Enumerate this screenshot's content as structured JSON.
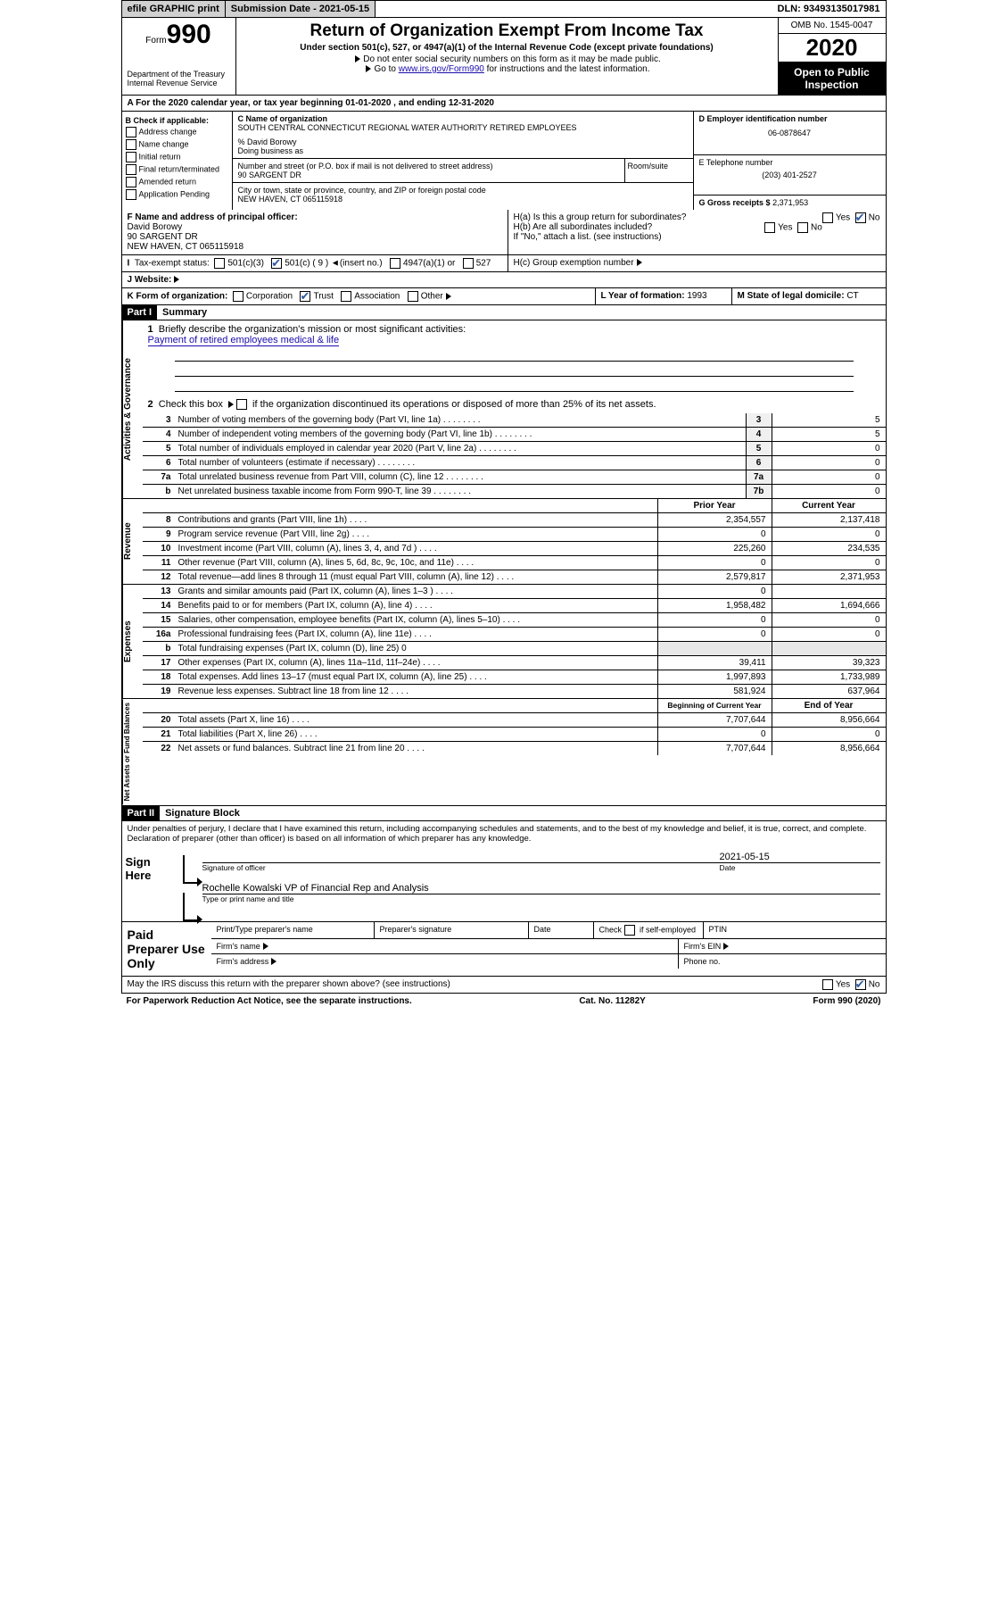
{
  "topbar": {
    "efile": "efile GRAPHIC print",
    "submission_label": "Submission Date -",
    "submission_date": "2021-05-15",
    "dln_label": "DLN:",
    "dln": "93493135017981"
  },
  "header": {
    "form_label": "Form",
    "form_num": "990",
    "dept": "Department of the Treasury\nInternal Revenue Service",
    "title": "Return of Organization Exempt From Income Tax",
    "subtitle": "Under section 501(c), 527, or 4947(a)(1) of the Internal Revenue Code (except private foundations)",
    "instr1": "Do not enter social security numbers on this form as it may be made public.",
    "instr2_pre": "Go to ",
    "instr2_link": "www.irs.gov/Form990",
    "instr2_post": " for instructions and the latest information.",
    "omb": "OMB No. 1545-0047",
    "year": "2020",
    "inspection": "Open to Public Inspection"
  },
  "row_a": "For the 2020 calendar year, or tax year beginning 01-01-2020   , and ending 12-31-2020",
  "col_b": {
    "heading": "B Check if applicable:",
    "items": [
      "Address change",
      "Name change",
      "Initial return",
      "Final return/terminated",
      "Amended return",
      "Application Pending"
    ]
  },
  "col_c": {
    "label_c": "C Name of organization",
    "org_name": "SOUTH CENTRAL CONNECTICUT REGIONAL WATER AUTHORITY RETIRED EMPLOYEES",
    "care_of": "% David Borowy",
    "dba_label": "Doing business as",
    "addr_label": "Number and street (or P.O. box if mail is not delivered to street address)",
    "addr": "90 SARGENT DR",
    "room_label": "Room/suite",
    "city_label": "City or town, state or province, country, and ZIP or foreign postal code",
    "city": "NEW HAVEN, CT  065115918"
  },
  "col_d": {
    "ein_label": "D Employer identification number",
    "ein": "06-0878647",
    "phone_label": "E Telephone number",
    "phone": "(203) 401-2527",
    "gross_label": "G Gross receipts $",
    "gross": "2,371,953"
  },
  "row_f": {
    "label": "F Name and address of principal officer:",
    "name": "David Borowy",
    "addr1": "90 SARGENT DR",
    "addr2": "NEW HAVEN, CT  065115918"
  },
  "row_h": {
    "ha": "H(a)  Is this a group return for subordinates?",
    "hb": "H(b)  Are all subordinates included?",
    "hb_note": "If \"No,\" attach a list. (see instructions)",
    "hc": "H(c)  Group exemption number",
    "yes": "Yes",
    "no": "No"
  },
  "row_i": {
    "label": "Tax-exempt status:",
    "opt1": "501(c)(3)",
    "opt2": "501(c) ( 9 )",
    "opt2_note": "(insert no.)",
    "opt3": "4947(a)(1) or",
    "opt4": "527"
  },
  "row_j": {
    "label": "J   Website:"
  },
  "row_k": {
    "label": "K Form of organization:",
    "corp": "Corporation",
    "trust": "Trust",
    "assoc": "Association",
    "other": "Other"
  },
  "row_l": {
    "label": "L Year of formation:",
    "val": "1993"
  },
  "row_m": {
    "label": "M State of legal domicile:",
    "val": "CT"
  },
  "part1": {
    "tag": "Part I",
    "title": "Summary"
  },
  "summary": {
    "line1": "Briefly describe the organization's mission or most significant activities:",
    "line1_val": "Payment of retired employees medical & life",
    "line2": "Check this box     if the organization discontinued its operations or disposed of more than 25% of its net assets.",
    "lines": [
      {
        "num": "3",
        "text": "Number of voting members of the governing body (Part VI, line 1a)",
        "box": "3",
        "val": "5"
      },
      {
        "num": "4",
        "text": "Number of independent voting members of the governing body (Part VI, line 1b)",
        "box": "4",
        "val": "5"
      },
      {
        "num": "5",
        "text": "Total number of individuals employed in calendar year 2020 (Part V, line 2a)",
        "box": "5",
        "val": "0"
      },
      {
        "num": "6",
        "text": "Total number of volunteers (estimate if necessary)",
        "box": "6",
        "val": "0"
      },
      {
        "num": "7a",
        "text": "Total unrelated business revenue from Part VIII, column (C), line 12",
        "box": "7a",
        "val": "0"
      },
      {
        "num": "b",
        "text": "Net unrelated business taxable income from Form 990-T, line 39",
        "box": "7b",
        "val": "0"
      }
    ]
  },
  "revenue": {
    "hdr_prior": "Prior Year",
    "hdr_curr": "Current Year",
    "lines": [
      {
        "num": "8",
        "text": "Contributions and grants (Part VIII, line 1h)",
        "prior": "2,354,557",
        "curr": "2,137,418"
      },
      {
        "num": "9",
        "text": "Program service revenue (Part VIII, line 2g)",
        "prior": "0",
        "curr": "0"
      },
      {
        "num": "10",
        "text": "Investment income (Part VIII, column (A), lines 3, 4, and 7d )",
        "prior": "225,260",
        "curr": "234,535"
      },
      {
        "num": "11",
        "text": "Other revenue (Part VIII, column (A), lines 5, 6d, 8c, 9c, 10c, and 11e)",
        "prior": "0",
        "curr": "0"
      },
      {
        "num": "12",
        "text": "Total revenue—add lines 8 through 11 (must equal Part VIII, column (A), line 12)",
        "prior": "2,579,817",
        "curr": "2,371,953"
      }
    ]
  },
  "expenses": {
    "lines": [
      {
        "num": "13",
        "text": "Grants and similar amounts paid (Part IX, column (A), lines 1–3 )",
        "prior": "0",
        "curr": ""
      },
      {
        "num": "14",
        "text": "Benefits paid to or for members (Part IX, column (A), line 4)",
        "prior": "1,958,482",
        "curr": "1,694,666"
      },
      {
        "num": "15",
        "text": "Salaries, other compensation, employee benefits (Part IX, column (A), lines 5–10)",
        "prior": "0",
        "curr": "0"
      },
      {
        "num": "16a",
        "text": "Professional fundraising fees (Part IX, column (A), line 11e)",
        "prior": "0",
        "curr": "0"
      },
      {
        "num": "b",
        "text": "Total fundraising expenses (Part IX, column (D), line 25)  0",
        "prior": "",
        "curr": "",
        "shade": true
      },
      {
        "num": "17",
        "text": "Other expenses (Part IX, column (A), lines 11a–11d, 11f–24e)",
        "prior": "39,411",
        "curr": "39,323"
      },
      {
        "num": "18",
        "text": "Total expenses. Add lines 13–17 (must equal Part IX, column (A), line 25)",
        "prior": "1,997,893",
        "curr": "1,733,989"
      },
      {
        "num": "19",
        "text": "Revenue less expenses. Subtract line 18 from line 12",
        "prior": "581,924",
        "curr": "637,964"
      }
    ]
  },
  "netassets": {
    "hdr_begin": "Beginning of Current Year",
    "hdr_end": "End of Year",
    "lines": [
      {
        "num": "20",
        "text": "Total assets (Part X, line 16)",
        "prior": "7,707,644",
        "curr": "8,956,664"
      },
      {
        "num": "21",
        "text": "Total liabilities (Part X, line 26)",
        "prior": "0",
        "curr": "0"
      },
      {
        "num": "22",
        "text": "Net assets or fund balances. Subtract line 21 from line 20",
        "prior": "7,707,644",
        "curr": "8,956,664"
      }
    ]
  },
  "part2": {
    "tag": "Part II",
    "title": "Signature Block"
  },
  "perjury": "Under penalties of perjury, I declare that I have examined this return, including accompanying schedules and statements, and to the best of my knowledge and belief, it is true, correct, and complete. Declaration of preparer (other than officer) is based on all information of which preparer has any knowledge.",
  "sign": {
    "here": "Sign Here",
    "sig_label": "Signature of officer",
    "date_label": "Date",
    "date_val": "2021-05-15",
    "name_val": "Rochelle Kowalski  VP of Financial Rep and Analysis",
    "name_label": "Type or print name and title"
  },
  "preparer": {
    "title": "Paid Preparer Use Only",
    "print_name": "Print/Type preparer's name",
    "prep_sig": "Preparer's signature",
    "date": "Date",
    "check_self": "Check        if self-employed",
    "ptin": "PTIN",
    "firm_name": "Firm's name",
    "firm_ein": "Firm's EIN",
    "firm_addr": "Firm's address",
    "phone": "Phone no."
  },
  "irs_discuss": "May the IRS discuss this return with the preparer shown above? (see instructions)",
  "footer": {
    "left": "For Paperwork Reduction Act Notice, see the separate instructions.",
    "mid": "Cat. No. 11282Y",
    "right": "Form 990 (2020)"
  }
}
